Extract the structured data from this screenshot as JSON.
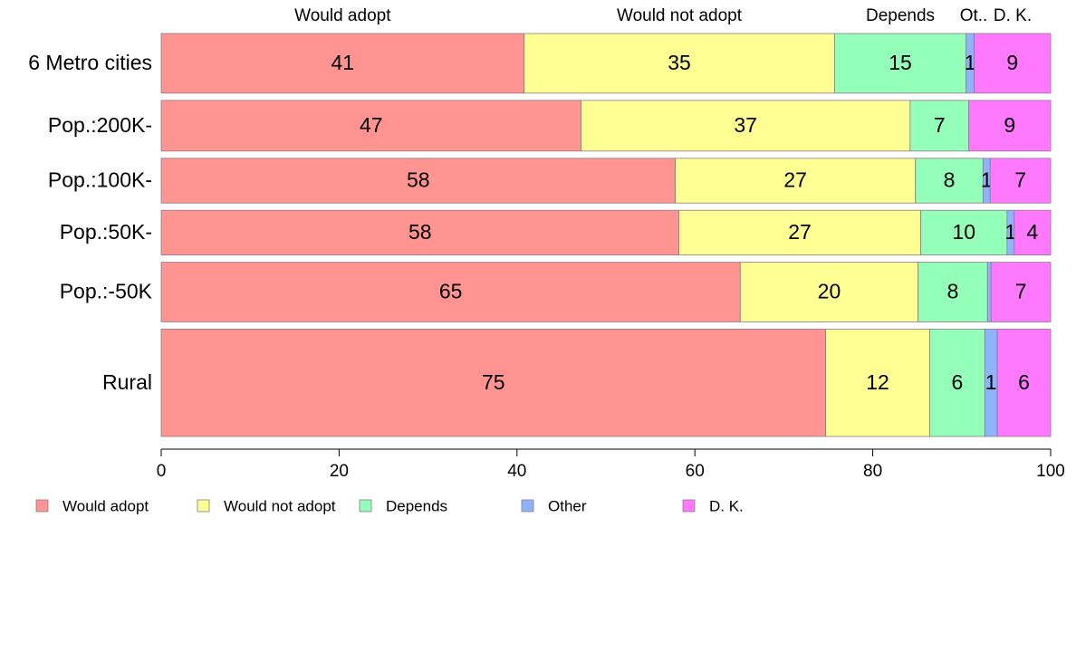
{
  "chart_data": {
    "type": "bar",
    "orientation": "horizontal",
    "stacked": "percent",
    "categories": [
      "6 Metro cities",
      "Pop.:200K-",
      "Pop.:100K-",
      "Pop.:50K-",
      "Pop.:-50K",
      "Rural"
    ],
    "series": [
      {
        "name": "Would adopt",
        "color": "#FF9490",
        "values": [
          40.8,
          47.2,
          57.8,
          58.2,
          65.1,
          74.7
        ]
      },
      {
        "name": "Would not adopt",
        "color": "#FFFF93",
        "values": [
          34.9,
          37.0,
          27.0,
          27.2,
          20.0,
          11.7
        ]
      },
      {
        "name": "Depends",
        "color": "#93FFB8",
        "values": [
          14.8,
          6.6,
          7.6,
          9.7,
          7.8,
          6.2
        ]
      },
      {
        "name": "Other",
        "color": "#8FB4FF",
        "values": [
          0.9,
          0.0,
          0.8,
          0.8,
          0.4,
          1.4
        ]
      },
      {
        "name": "D. K.",
        "color": "#FF79FF",
        "values": [
          8.6,
          9.2,
          6.8,
          4.1,
          6.7,
          6.0
        ]
      }
    ],
    "data_labels": [
      [
        "41",
        "35",
        "15",
        "1",
        "9"
      ],
      [
        "47",
        "37",
        "7",
        "",
        "9"
      ],
      [
        "58",
        "27",
        "8",
        "1",
        "7"
      ],
      [
        "58",
        "27",
        "10",
        "1",
        "4"
      ],
      [
        "65",
        "20",
        "8",
        "",
        "7"
      ],
      [
        "75",
        "12",
        "6",
        "1",
        "6"
      ]
    ],
    "top_labels": [
      "Would adopt",
      "Would not adopt",
      "Depends",
      "Ot..",
      "D. K."
    ],
    "xlim": [
      0,
      100
    ],
    "xticks": [
      "0",
      "20",
      "40",
      "60",
      "80",
      "100"
    ],
    "row_weights": [
      1,
      0.85,
      0.75,
      0.75,
      1,
      1.8
    ],
    "legend_position": "bottom-left",
    "grid": false
  }
}
